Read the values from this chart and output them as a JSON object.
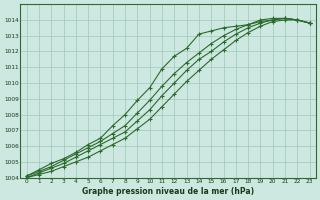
{
  "xlabel": "Graphe pression niveau de la mer (hPa)",
  "x": [
    0,
    1,
    2,
    3,
    4,
    5,
    6,
    7,
    8,
    9,
    10,
    11,
    12,
    13,
    14,
    15,
    16,
    17,
    18,
    19,
    20,
    21,
    22,
    23
  ],
  "line1": [
    1004.1,
    1004.5,
    1004.9,
    1005.2,
    1005.6,
    1006.1,
    1006.5,
    1007.3,
    1008.0,
    1008.9,
    1009.7,
    1010.9,
    1011.7,
    1012.2,
    1013.1,
    1013.3,
    1013.5,
    1013.6,
    1013.7,
    1014.0,
    1014.1,
    1014.1,
    1014.0,
    1013.8
  ],
  "line2": [
    1004.1,
    1004.4,
    1004.7,
    1005.1,
    1005.5,
    1005.9,
    1006.3,
    1006.8,
    1007.3,
    1008.1,
    1008.9,
    1009.8,
    1010.6,
    1011.3,
    1011.9,
    1012.5,
    1013.0,
    1013.4,
    1013.7,
    1013.9,
    1014.0,
    1014.1,
    1014.0,
    1013.8
  ],
  "line3": [
    1004.0,
    1004.3,
    1004.6,
    1004.9,
    1005.3,
    1005.7,
    1006.1,
    1006.5,
    1006.9,
    1007.6,
    1008.3,
    1009.2,
    1010.0,
    1010.8,
    1011.5,
    1012.0,
    1012.6,
    1013.1,
    1013.5,
    1013.8,
    1014.0,
    1014.1,
    1014.0,
    1013.8
  ],
  "line4": [
    1004.0,
    1004.2,
    1004.4,
    1004.7,
    1005.0,
    1005.3,
    1005.7,
    1006.1,
    1006.5,
    1007.1,
    1007.7,
    1008.5,
    1009.3,
    1010.1,
    1010.8,
    1011.5,
    1012.1,
    1012.7,
    1013.2,
    1013.6,
    1013.9,
    1014.0,
    1014.0,
    1013.8
  ],
  "line_color": "#2d6a2d",
  "marker_color": "#2d6a2d",
  "bg_color": "#cce8e0",
  "grid_color": "#a0c8b8",
  "ylim": [
    1004,
    1015
  ],
  "yticks": [
    1004,
    1005,
    1006,
    1007,
    1008,
    1009,
    1010,
    1011,
    1012,
    1013,
    1014
  ],
  "xlim": [
    -0.5,
    23.5
  ],
  "xticks": [
    0,
    1,
    2,
    3,
    4,
    5,
    6,
    7,
    8,
    9,
    10,
    11,
    12,
    13,
    14,
    15,
    16,
    17,
    18,
    19,
    20,
    21,
    22,
    23
  ]
}
